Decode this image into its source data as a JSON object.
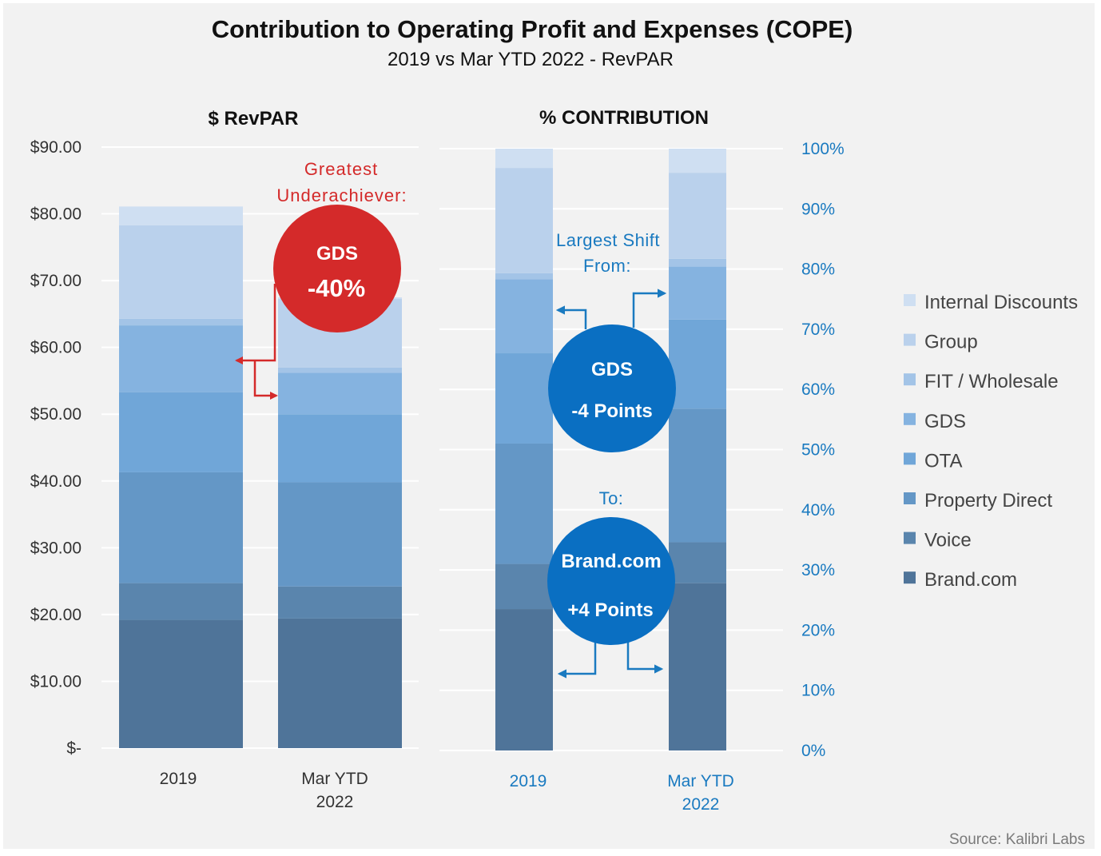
{
  "title": "Contribution to Operating Profit and Expenses (COPE)",
  "subtitle": "2019 vs Mar YTD 2022 - RevPAR",
  "source": "Source: Kalibri Labs",
  "colors": {
    "background": "#f2f2f2",
    "grid": "#ffffff",
    "red_accent": "#d42a2a",
    "blue_accent": "#0a6fc2",
    "axis_blue": "#1a7ac0",
    "segments": {
      "Brand.com": "#4f7499",
      "Voice": "#5a85ad",
      "Property Direct": "#6497c6",
      "OTA": "#70a6d8",
      "GDS": "#85b3e0",
      "FIT / Wholesale": "#a3c4e7",
      "Group": "#bad1ec",
      "Internal Discounts": "#cfdff2"
    }
  },
  "legend": {
    "items": [
      {
        "label": "Internal Discounts",
        "key": "Internal Discounts"
      },
      {
        "label": "Group",
        "key": "Group"
      },
      {
        "label": "FIT / Wholesale",
        "key": "FIT / Wholesale"
      },
      {
        "label": "GDS",
        "key": "GDS"
      },
      {
        "label": "OTA",
        "key": "OTA"
      },
      {
        "label": "Property Direct",
        "key": "Property Direct"
      },
      {
        "label": "Voice",
        "key": "Voice"
      },
      {
        "label": "Brand.com",
        "key": "Brand.com"
      }
    ]
  },
  "annotations": {
    "left_note_line1": "Greatest",
    "left_note_line2": "Underachiever:",
    "left_bubble_line1": "GDS",
    "left_bubble_line2": "-40%",
    "shift_from_line1": "Largest Shift",
    "shift_from_line2": "From:",
    "from_bubble_line1": "GDS",
    "from_bubble_line2": "-4 Points",
    "shift_to": "To:",
    "to_bubble_line1": "Brand.com",
    "to_bubble_line2": "+4 Points"
  },
  "chart_data": [
    {
      "type": "bar",
      "stacked": true,
      "title": "$ RevPAR",
      "categories": [
        "2019",
        "Mar YTD 2022"
      ],
      "category_labels": [
        [
          "2019"
        ],
        [
          "Mar YTD",
          "2022"
        ]
      ],
      "ylim": [
        0,
        90
      ],
      "yticks": [
        0,
        10,
        20,
        30,
        40,
        50,
        60,
        70,
        80,
        90
      ],
      "ytick_labels": [
        "$-",
        "$10.00",
        "$20.00",
        "$30.00",
        "$40.00",
        "$50.00",
        "$60.00",
        "$70.00",
        "$80.00",
        "$90.00"
      ],
      "axis_side": "left",
      "grid": true,
      "series": [
        {
          "name": "Brand.com",
          "values": [
            19.2,
            19.4
          ]
        },
        {
          "name": "Voice",
          "values": [
            5.5,
            4.8
          ]
        },
        {
          "name": "Property Direct",
          "values": [
            16.6,
            15.6
          ]
        },
        {
          "name": "OTA",
          "values": [
            12.0,
            10.2
          ]
        },
        {
          "name": "GDS",
          "values": [
            10.0,
            6.2
          ]
        },
        {
          "name": "FIT / Wholesale",
          "values": [
            1.0,
            0.8
          ]
        },
        {
          "name": "Group",
          "values": [
            14.0,
            10.3
          ]
        },
        {
          "name": "Internal Discounts",
          "values": [
            2.8,
            0.2
          ]
        }
      ]
    },
    {
      "type": "bar",
      "stacked": true,
      "title": "% CONTRIBUTION",
      "categories": [
        "2019",
        "Mar YTD 2022"
      ],
      "category_labels": [
        [
          "2019"
        ],
        [
          "Mar YTD",
          "2022"
        ]
      ],
      "ylim": [
        0,
        100
      ],
      "yticks": [
        0,
        10,
        20,
        30,
        40,
        50,
        60,
        70,
        80,
        90,
        100
      ],
      "ytick_labels": [
        "0%",
        "10%",
        "20%",
        "30%",
        "40%",
        "50%",
        "60%",
        "70%",
        "80%",
        "90%",
        "100%"
      ],
      "axis_side": "right",
      "grid": true,
      "series": [
        {
          "name": "Brand.com",
          "values": [
            23.5,
            27.8
          ]
        },
        {
          "name": "Voice",
          "values": [
            7.5,
            6.8
          ]
        },
        {
          "name": "Property Direct",
          "values": [
            20.0,
            22.2
          ]
        },
        {
          "name": "OTA",
          "values": [
            15.0,
            14.8
          ]
        },
        {
          "name": "GDS",
          "values": [
            12.3,
            8.8
          ]
        },
        {
          "name": "FIT / Wholesale",
          "values": [
            1.0,
            1.3
          ]
        },
        {
          "name": "Group",
          "values": [
            17.5,
            14.3
          ]
        },
        {
          "name": "Internal Discounts",
          "values": [
            3.2,
            4.0
          ]
        }
      ]
    }
  ]
}
